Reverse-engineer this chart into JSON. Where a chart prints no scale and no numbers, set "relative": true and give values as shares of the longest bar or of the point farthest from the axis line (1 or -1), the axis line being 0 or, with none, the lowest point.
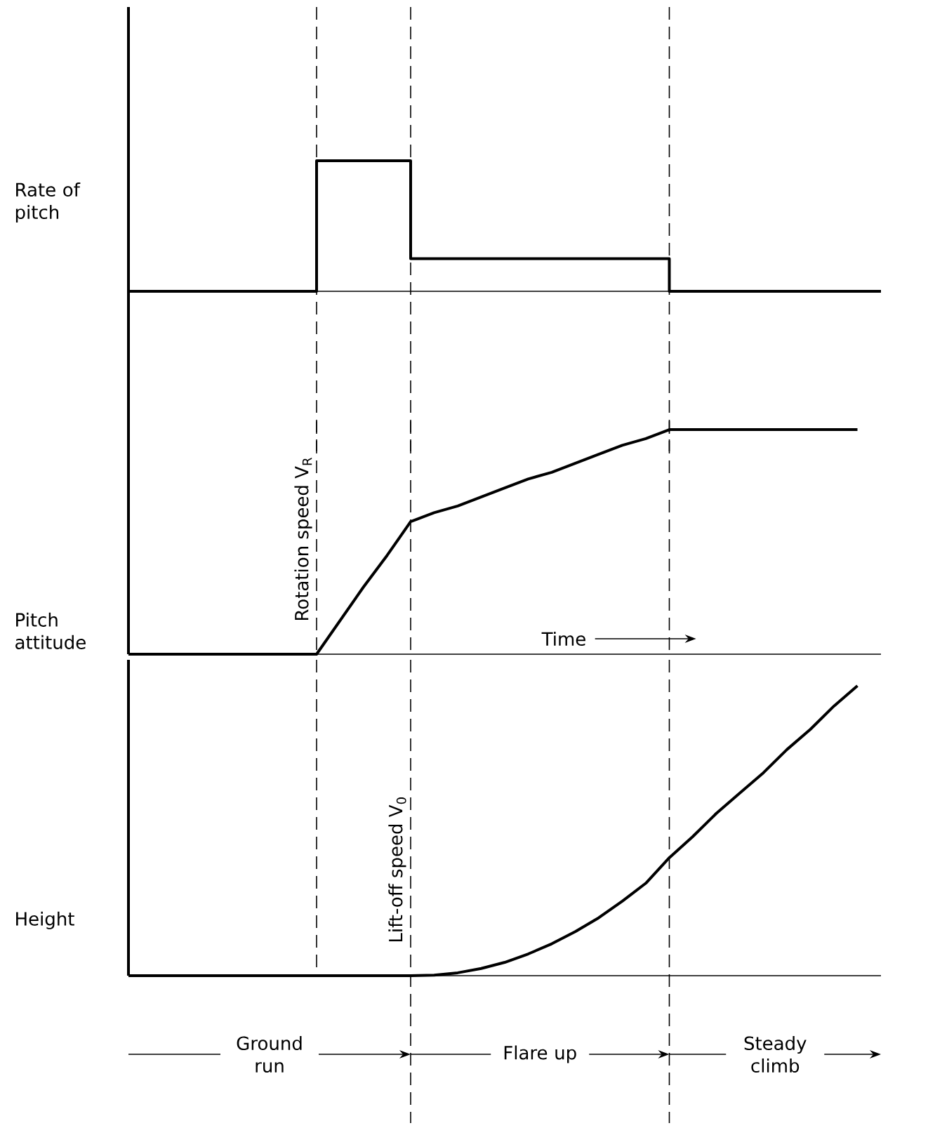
{
  "chart_data": [
    {
      "type": "step",
      "relative": true,
      "ylabel": "Rate of pitch",
      "color": "#000000",
      "grid": "x",
      "categories": [
        null,
        null,
        null,
        null,
        null,
        null,
        null,
        null,
        null,
        null,
        null,
        null,
        null,
        null,
        null,
        null,
        null,
        null,
        null,
        null,
        null,
        null,
        null,
        null,
        null,
        null,
        null,
        null,
        null,
        null,
        null,
        null,
        null
      ],
      "values": [
        0,
        0,
        0,
        0,
        0,
        0,
        0,
        0,
        1,
        1,
        1,
        1,
        0.25,
        0.25,
        0.25,
        0.25,
        0.25,
        0.25,
        0.25,
        0.25,
        0.25,
        0.25,
        0.25,
        0,
        0,
        0,
        0,
        0,
        0,
        0,
        0,
        0,
        0
      ]
    },
    {
      "type": "line",
      "relative": true,
      "ylabel": "Pitch attitude",
      "color": "#000000",
      "grid": "x",
      "categories": [
        null,
        null,
        null,
        null,
        null,
        null,
        null,
        null,
        null,
        null,
        null,
        null,
        null,
        null,
        null,
        null,
        null,
        null,
        null,
        null,
        null,
        null,
        null,
        null,
        null,
        null,
        null,
        null,
        null,
        null,
        null,
        null,
        null
      ],
      "values": [
        0,
        0,
        0,
        0,
        0,
        0,
        0,
        0,
        0,
        0.15,
        0.3,
        0.44,
        0.59,
        0.63,
        0.66,
        0.7,
        0.74,
        0.78,
        0.81,
        0.85,
        0.89,
        0.93,
        0.96,
        1,
        1,
        1,
        1,
        1,
        1,
        1,
        1,
        1,
        null
      ],
      "annotations": [
        "Rotation speed V$_{R}$",
        "Time"
      ]
    },
    {
      "type": "line",
      "relative": true,
      "ylabel": "Height",
      "color": "#000000",
      "grid": "x",
      "categories": [
        null,
        null,
        null,
        null,
        null,
        null,
        null,
        null,
        null,
        null,
        null,
        null,
        null,
        null,
        null,
        null,
        null,
        null,
        null,
        null,
        null,
        null,
        null,
        null,
        null,
        null,
        null,
        null,
        null,
        null,
        null,
        null,
        null
      ],
      "values": [
        0,
        0,
        0,
        0,
        0,
        0,
        0,
        0,
        0,
        0,
        0,
        0,
        0,
        0.002,
        0.01,
        0.025,
        0.046,
        0.075,
        0.11,
        0.152,
        0.2,
        0.257,
        0.319,
        0.407,
        0.48,
        0.56,
        0.63,
        0.7,
        0.78,
        0.85,
        0.93,
        1,
        null
      ],
      "annotations": [
        "Lift-off speed V$_{0}$",
        "Ground run",
        "Flare up",
        "Steady climb"
      ]
    }
  ]
}
